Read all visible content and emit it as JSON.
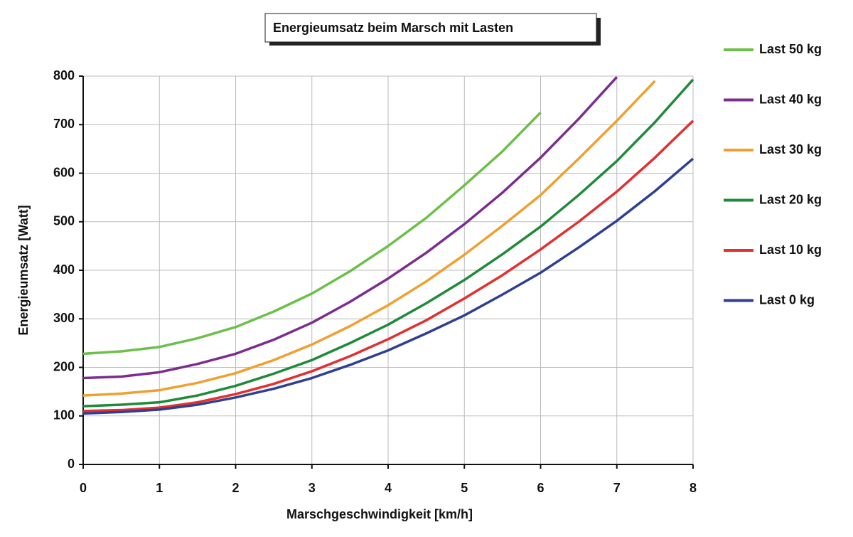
{
  "chart_data": {
    "type": "line",
    "title": "Energieumsatz beim Marsch mit Lasten",
    "x_label": "Marschgeschwindigkeit [km/h]",
    "y_label": "Energieumsatz [Watt]",
    "x": [
      0,
      0.5,
      1,
      1.5,
      2,
      2.5,
      3,
      3.5,
      4,
      4.5,
      5,
      5.5,
      6,
      6.5,
      7,
      7.5,
      8
    ],
    "series": [
      {
        "name": "Last 50 kg",
        "color": "#6cc04a",
        "values": [
          228,
          233,
          242,
          260,
          283,
          315,
          352,
          398,
          450,
          508,
          575,
          645,
          725,
          null,
          null,
          null,
          null
        ]
      },
      {
        "name": "Last 40 kg",
        "color": "#7b2d8e",
        "values": [
          178,
          181,
          190,
          207,
          228,
          257,
          292,
          335,
          383,
          436,
          495,
          560,
          632,
          712,
          798,
          null,
          null
        ]
      },
      {
        "name": "Last 30 kg",
        "color": "#f0a030",
        "values": [
          142,
          146,
          153,
          168,
          188,
          215,
          247,
          285,
          328,
          377,
          432,
          492,
          555,
          630,
          708,
          790,
          null
        ]
      },
      {
        "name": "Last 20 kg",
        "color": "#1f8a3a",
        "values": [
          120,
          123,
          128,
          142,
          162,
          187,
          215,
          250,
          288,
          332,
          380,
          433,
          490,
          555,
          625,
          705,
          793
        ]
      },
      {
        "name": "Last 10 kg",
        "color": "#e03030",
        "values": [
          110,
          112,
          117,
          128,
          145,
          166,
          192,
          223,
          258,
          297,
          342,
          390,
          443,
          500,
          562,
          632,
          708
        ]
      },
      {
        "name": "Last 0 kg",
        "color": "#2e3f94",
        "values": [
          105,
          108,
          113,
          123,
          138,
          156,
          178,
          205,
          235,
          270,
          307,
          350,
          395,
          447,
          502,
          563,
          630
        ]
      }
    ],
    "xlim": [
      0,
      8
    ],
    "xticks": [
      0,
      1,
      2,
      3,
      4,
      5,
      6,
      7,
      8
    ],
    "ylim": [
      0,
      800
    ],
    "yticks": [
      0,
      100,
      200,
      300,
      400,
      500,
      600,
      700,
      800
    ],
    "grid": true,
    "legend": "right"
  }
}
